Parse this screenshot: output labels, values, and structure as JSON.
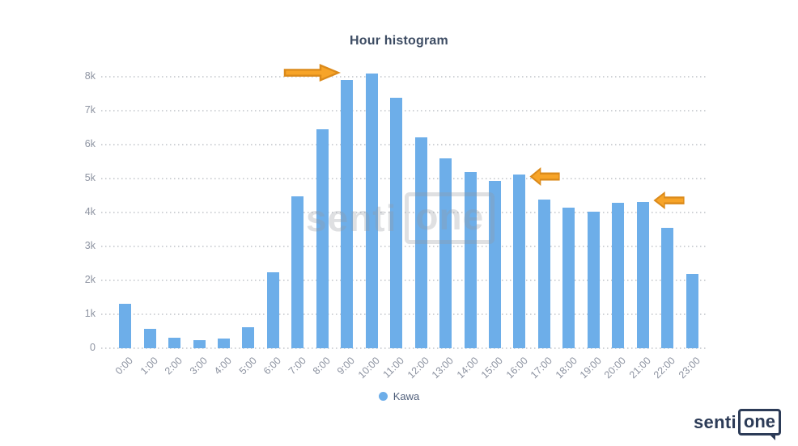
{
  "chart_data": {
    "type": "bar",
    "title": "Hour histogram",
    "categories": [
      "0:00",
      "1:00",
      "2:00",
      "3:00",
      "4:00",
      "5:00",
      "6:00",
      "7:00",
      "8:00",
      "9:00",
      "10:00",
      "11:00",
      "12:00",
      "13:00",
      "14:00",
      "15:00",
      "16:00",
      "17:00",
      "18:00",
      "19:00",
      "20:00",
      "21:00",
      "22:00",
      "23:00"
    ],
    "series": [
      {
        "name": "Kawa",
        "values": [
          1300,
          580,
          300,
          230,
          280,
          620,
          2250,
          4470,
          6450,
          7900,
          8100,
          7390,
          6210,
          5600,
          5180,
          4920,
          5120,
          4380,
          4150,
          4020,
          4280,
          4300,
          3550,
          2190
        ]
      }
    ],
    "xlabel": "",
    "ylabel": "",
    "yticks": [
      "0",
      "1k",
      "2k",
      "3k",
      "4k",
      "5k",
      "6k",
      "7k",
      "8k"
    ],
    "ylim": [
      0,
      8250
    ],
    "grid": "horizontal-dotted",
    "legend_position": "bottom-center",
    "annotations": [
      {
        "type": "arrow",
        "direction": "right",
        "target_hour": "9:00",
        "fill": "#F7A428",
        "stroke": "#DB8A1A"
      },
      {
        "type": "arrow",
        "direction": "left",
        "target_hour": "16:00",
        "fill": "#F7A428",
        "stroke": "#DB8A1A"
      },
      {
        "type": "arrow",
        "direction": "left",
        "target_hour": "21:00",
        "fill": "#F7A428",
        "stroke": "#DB8A1A"
      }
    ]
  },
  "legend": {
    "label": "Kawa",
    "marker_color": "#6DAEE9"
  },
  "watermark": {
    "senti": "senti",
    "one": "one"
  },
  "logo": {
    "senti": "senti",
    "one": "one"
  },
  "colors": {
    "bar": "#6DAEE9",
    "title_text": "#3D4C63",
    "axis_label": "#8D93A1",
    "gridline": "#cfd2d6",
    "arrow_fill": "#F7A428",
    "arrow_stroke": "#DB8A1A",
    "logo_navy": "#2C3B57"
  }
}
